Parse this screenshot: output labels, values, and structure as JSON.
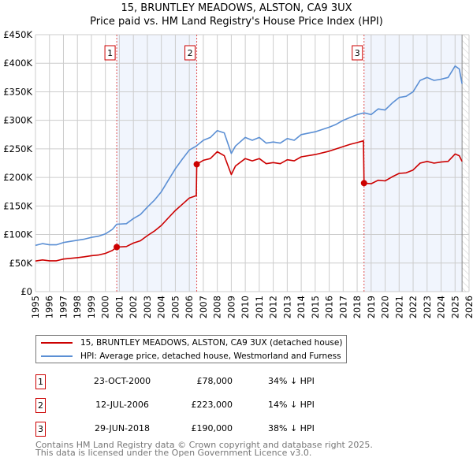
{
  "chart_data": {
    "type": "line",
    "title": "15, BRUNTLEY MEADOWS, ALSTON, CA9 3UX",
    "subtitle": "Price paid vs. HM Land Registry's House Price Index (HPI)",
    "xlim": [
      1995,
      2026
    ],
    "ylim": [
      0,
      450000
    ],
    "y_ticks": [
      0,
      50000,
      100000,
      150000,
      200000,
      250000,
      300000,
      350000,
      400000,
      450000
    ],
    "y_tick_labels": [
      "£0",
      "£50K",
      "£100K",
      "£150K",
      "£200K",
      "£250K",
      "£300K",
      "£350K",
      "£400K",
      "£450K"
    ],
    "x_ticks": [
      "1995",
      "1996",
      "1997",
      "1998",
      "1999",
      "2000",
      "2001",
      "2002",
      "2003",
      "2004",
      "2005",
      "2006",
      "2007",
      "2008",
      "2009",
      "2010",
      "2011",
      "2012",
      "2013",
      "2014",
      "2015",
      "2016",
      "2017",
      "2018",
      "2019",
      "2020",
      "2021",
      "2022",
      "2023",
      "2024",
      "2025",
      "2026"
    ],
    "grid": true,
    "forecast_hatch_from": 2025.5,
    "series": [
      {
        "name": "15, BRUNTLEY MEADOWS, ALSTON, CA9 3UX (detached house)",
        "color": "#cc0000",
        "x": [
          1995,
          1995.5,
          1996,
          1996.5,
          1997,
          1998,
          1998.5,
          1999,
          1999.5,
          2000,
          2000.5,
          2000.81,
          2001.5,
          2002,
          2002.5,
          2003,
          2003.5,
          2004,
          2004.5,
          2005,
          2005.5,
          2006,
          2006.5,
          2006.53,
          2007,
          2007.5,
          2008,
          2008.5,
          2009,
          2009.3,
          2010,
          2010.5,
          2011,
          2011.5,
          2012,
          2012.5,
          2013,
          2013.5,
          2014,
          2015,
          2016,
          2016.5,
          2017,
          2017.5,
          2018,
          2018.45,
          2018.49,
          2019,
          2019.5,
          2020,
          2020.5,
          2021,
          2021.5,
          2022,
          2022.5,
          2023,
          2023.5,
          2024,
          2024.5,
          2025,
          2025.3,
          2025.5
        ],
        "y": [
          53500,
          55500,
          54000,
          54000,
          57000,
          59500,
          61000,
          63000,
          64000,
          67000,
          72000,
          78000,
          79000,
          85000,
          89000,
          98000,
          106000,
          116000,
          129000,
          142000,
          153000,
          164000,
          168000,
          223000,
          230000,
          233000,
          245000,
          238000,
          205000,
          220000,
          233000,
          229000,
          233000,
          224000,
          226000,
          224000,
          231000,
          229000,
          236000,
          240000,
          246000,
          250000,
          254000,
          258000,
          261000,
          264000,
          190000,
          189000,
          195000,
          194000,
          201000,
          207000,
          208000,
          213000,
          225000,
          228000,
          225000,
          227000,
          228000,
          241000,
          238000,
          228000
        ]
      },
      {
        "name": "HPI: Average price, detached house, Westmorland and Furness",
        "color": "#5b8fd4",
        "x": [
          1995,
          1995.5,
          1996,
          1996.5,
          1997,
          1998,
          1998.5,
          1999,
          1999.5,
          2000,
          2000.5,
          2000.81,
          2001.5,
          2002,
          2002.5,
          2003,
          2003.5,
          2004,
          2004.5,
          2005,
          2005.5,
          2006,
          2006.5,
          2007,
          2007.5,
          2008,
          2008.5,
          2009,
          2009.3,
          2010,
          2010.5,
          2011,
          2011.5,
          2012,
          2012.5,
          2013,
          2013.5,
          2014,
          2015,
          2016,
          2016.5,
          2017,
          2017.5,
          2018,
          2018.5,
          2019,
          2019.5,
          2020,
          2020.5,
          2021,
          2021.5,
          2022,
          2022.5,
          2023,
          2023.5,
          2024,
          2024.5,
          2025,
          2025.3,
          2025.5
        ],
        "y": [
          81000,
          84000,
          82000,
          82000,
          86000,
          90000,
          92000,
          95000,
          97000,
          101000,
          109000,
          118000,
          119000,
          128000,
          135000,
          148000,
          160000,
          175000,
          195000,
          215000,
          232000,
          248000,
          255000,
          265000,
          270000,
          282000,
          278000,
          242000,
          255000,
          270000,
          265000,
          270000,
          260000,
          262000,
          260000,
          268000,
          265000,
          275000,
          280000,
          288000,
          293000,
          300000,
          305000,
          310000,
          313000,
          310000,
          320000,
          318000,
          330000,
          340000,
          342000,
          350000,
          370000,
          375000,
          370000,
          372000,
          375000,
          395000,
          390000,
          364000
        ]
      }
    ],
    "sales": [
      {
        "label": "1",
        "x": 2000.81,
        "y": 78000,
        "date": "23-OCT-2000",
        "price": "£78,000",
        "hpi": "34% ↓ HPI"
      },
      {
        "label": "2",
        "x": 2006.53,
        "y": 223000,
        "date": "12-JUL-2006",
        "price": "£223,000",
        "hpi": "14% ↓ HPI"
      },
      {
        "label": "3",
        "x": 2018.49,
        "y": 190000,
        "date": "29-JUN-2018",
        "price": "£190,000",
        "hpi": "38% ↓ HPI"
      }
    ]
  },
  "legend": {
    "property": "15, BRUNTLEY MEADOWS, ALSTON, CA9 3UX (detached house)",
    "hpi": "HPI: Average price, detached house, Westmorland and Furness"
  },
  "footer": {
    "line1": "Contains HM Land Registry data © Crown copyright and database right 2025.",
    "line2": "This data is licensed under the Open Government Licence v3.0."
  }
}
